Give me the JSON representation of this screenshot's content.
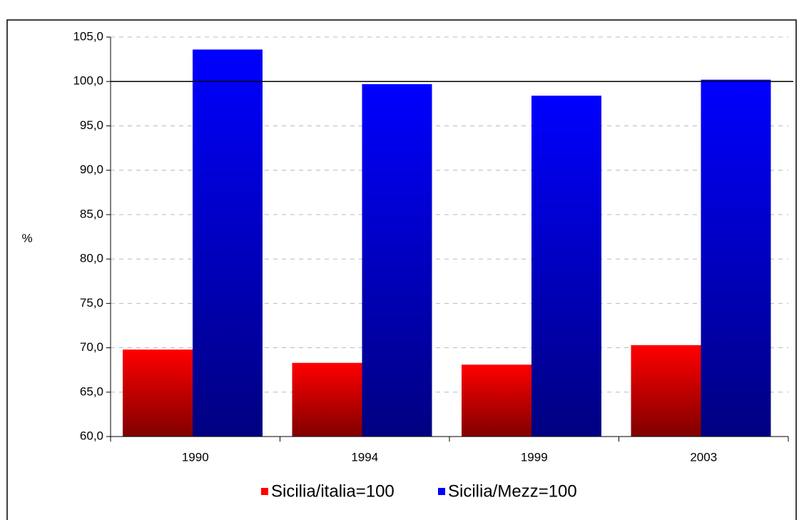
{
  "chart_data": {
    "type": "bar",
    "ylabel": "%",
    "categories": [
      "1990",
      "1994",
      "1999",
      "2003"
    ],
    "series": [
      {
        "name": "Sicilia/italia=100",
        "color": "#ff0000",
        "values": [
          69.8,
          68.3,
          68.1,
          70.3
        ]
      },
      {
        "name": "Sicilia/Mezz=100",
        "color": "#0000ff",
        "values": [
          103.6,
          99.7,
          98.4,
          100.2
        ]
      }
    ],
    "ylim": [
      60,
      105
    ],
    "yticks": [
      {
        "value": 60,
        "label": "60,0"
      },
      {
        "value": 65,
        "label": "65,0"
      },
      {
        "value": 70,
        "label": "70,0"
      },
      {
        "value": 75,
        "label": "75,0"
      },
      {
        "value": 80,
        "label": "80,0"
      },
      {
        "value": 85,
        "label": "85,0"
      },
      {
        "value": 90,
        "label": "90,0"
      },
      {
        "value": 95,
        "label": "95,0"
      },
      {
        "value": 100,
        "label": "100,0"
      },
      {
        "value": 105,
        "label": "105,0"
      }
    ],
    "reference_line": 100,
    "grid": true,
    "legend": "bottom"
  }
}
